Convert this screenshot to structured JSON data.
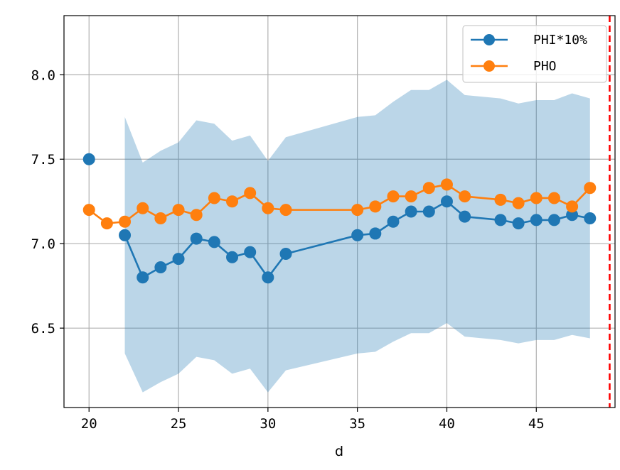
{
  "chart_data": {
    "type": "line",
    "title": "",
    "xlabel": "d",
    "ylabel": "",
    "xlim": [
      18.6,
      49.4
    ],
    "ylim": [
      6.03,
      8.35
    ],
    "xticks": [
      20,
      25,
      30,
      35,
      40,
      45
    ],
    "xtick_labels": [
      "20",
      "25",
      "30",
      "35",
      "40",
      "45"
    ],
    "yticks": [
      6.5,
      7.0,
      7.5,
      8.0
    ],
    "ytick_labels": [
      "6.5",
      "7.0",
      "7.5",
      "8.0"
    ],
    "grid": true,
    "legend_position": "top-right",
    "vline": {
      "x": 49.1,
      "color": "#ff0000",
      "style": "dashed"
    },
    "band": {
      "color": "#1f77b4",
      "x": [
        22,
        23,
        24,
        25,
        26,
        27,
        28,
        29,
        30,
        31,
        35,
        36,
        37,
        38,
        39,
        40,
        41,
        43,
        44,
        45,
        46,
        47,
        48
      ],
      "upper": [
        7.75,
        7.48,
        7.55,
        7.6,
        7.73,
        7.71,
        7.61,
        7.64,
        7.49,
        7.63,
        7.75,
        7.76,
        7.84,
        7.91,
        7.91,
        7.97,
        7.88,
        7.86,
        7.83,
        7.85,
        7.85,
        7.89,
        7.86
      ],
      "lower": [
        6.35,
        6.12,
        6.18,
        6.23,
        6.33,
        6.31,
        6.23,
        6.26,
        6.12,
        6.25,
        6.35,
        6.36,
        6.42,
        6.47,
        6.47,
        6.53,
        6.45,
        6.43,
        6.41,
        6.43,
        6.43,
        6.46,
        6.44
      ]
    },
    "series": [
      {
        "name": "PHI*10%",
        "color": "#1f77b4",
        "x": [
          20,
          22,
          23,
          24,
          25,
          26,
          27,
          28,
          29,
          30,
          31,
          35,
          36,
          37,
          38,
          39,
          40,
          41,
          43,
          44,
          45,
          46,
          47,
          48
        ],
        "values": [
          7.5,
          7.05,
          6.8,
          6.86,
          6.91,
          7.03,
          7.01,
          6.92,
          6.95,
          6.8,
          6.94,
          7.05,
          7.06,
          7.13,
          7.19,
          7.19,
          7.25,
          7.16,
          7.14,
          7.12,
          7.14,
          7.14,
          7.17,
          7.15
        ],
        "line_segments": [
          [
            22,
            23,
            24,
            25,
            26,
            27,
            28,
            29,
            30,
            31,
            35,
            36,
            37,
            38,
            39,
            40,
            41,
            43,
            44,
            45,
            46,
            47,
            48
          ]
        ]
      },
      {
        "name": "PHO",
        "color": "#ff7f0e",
        "x": [
          20,
          21,
          22,
          23,
          24,
          25,
          26,
          27,
          28,
          29,
          30,
          31,
          35,
          36,
          37,
          38,
          39,
          40,
          41,
          43,
          44,
          45,
          46,
          47,
          48
        ],
        "values": [
          7.2,
          7.12,
          7.13,
          7.21,
          7.15,
          7.2,
          7.17,
          7.27,
          7.25,
          7.3,
          7.21,
          7.2,
          7.2,
          7.22,
          7.28,
          7.28,
          7.33,
          7.35,
          7.28,
          7.26,
          7.24,
          7.27,
          7.27,
          7.22,
          7.33
        ],
        "line_segments": [
          [
            20,
            21,
            22,
            23,
            24,
            25,
            26,
            27,
            28,
            29,
            30,
            31,
            35,
            36,
            37,
            38,
            39,
            40,
            41,
            43,
            44,
            45,
            46,
            47,
            48
          ]
        ]
      }
    ]
  }
}
